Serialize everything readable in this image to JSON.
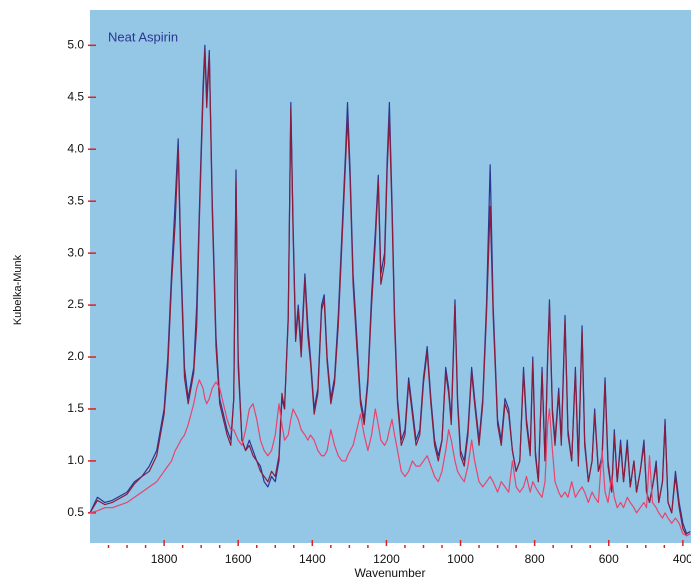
{
  "chart_data": {
    "type": "line",
    "title": "Neat Aspirin",
    "x_label": "Wavenumber",
    "y_label": "Kubelka-Munk",
    "x": [
      2000,
      1980,
      1960,
      1940,
      1900,
      1880,
      1860,
      1840,
      1820,
      1800,
      1790,
      1780,
      1770,
      1762,
      1755,
      1745,
      1735,
      1720,
      1712,
      1705,
      1695,
      1690,
      1685,
      1678,
      1670,
      1660,
      1650,
      1640,
      1630,
      1620,
      1612,
      1606,
      1600,
      1590,
      1580,
      1570,
      1560,
      1550,
      1540,
      1530,
      1520,
      1510,
      1500,
      1490,
      1482,
      1475,
      1465,
      1458,
      1452,
      1445,
      1438,
      1430,
      1420,
      1412,
      1405,
      1395,
      1385,
      1375,
      1368,
      1360,
      1350,
      1340,
      1330,
      1320,
      1310,
      1305,
      1298,
      1290,
      1280,
      1270,
      1260,
      1250,
      1240,
      1230,
      1222,
      1215,
      1205,
      1198,
      1192,
      1185,
      1178,
      1170,
      1160,
      1150,
      1140,
      1130,
      1120,
      1110,
      1100,
      1090,
      1080,
      1070,
      1060,
      1050,
      1040,
      1032,
      1025,
      1015,
      1008,
      1000,
      990,
      980,
      970,
      962,
      950,
      940,
      930,
      920,
      912,
      900,
      890,
      880,
      870,
      860,
      850,
      840,
      830,
      822,
      812,
      805,
      798,
      790,
      780,
      772,
      765,
      760,
      752,
      745,
      735,
      728,
      718,
      710,
      700,
      690,
      682,
      672,
      665,
      655,
      645,
      638,
      628,
      618,
      610,
      602,
      592,
      585,
      577,
      568,
      560,
      550,
      542,
      532,
      525,
      515,
      505,
      498,
      490,
      482,
      472,
      465,
      455,
      448,
      440,
      430,
      420,
      410,
      400,
      390,
      380
    ],
    "series": [
      {
        "color": "#2c3592",
        "values": [
          0.5,
          0.65,
          0.6,
          0.62,
          0.7,
          0.8,
          0.85,
          0.95,
          1.1,
          1.5,
          2.0,
          2.8,
          3.5,
          4.1,
          3.0,
          1.9,
          1.6,
          1.9,
          2.5,
          3.4,
          4.6,
          5.0,
          4.5,
          4.95,
          3.5,
          2.2,
          1.6,
          1.45,
          1.3,
          1.2,
          1.6,
          3.8,
          2.0,
          1.2,
          1.1,
          1.2,
          1.1,
          1.0,
          0.95,
          0.8,
          0.75,
          0.85,
          0.8,
          1.0,
          1.6,
          1.5,
          2.4,
          4.45,
          3.3,
          2.2,
          2.5,
          2.1,
          2.8,
          2.3,
          2.0,
          1.5,
          1.7,
          2.5,
          2.6,
          2.0,
          1.6,
          1.8,
          2.4,
          3.2,
          4.0,
          4.45,
          3.8,
          2.8,
          2.2,
          1.6,
          1.4,
          1.8,
          2.6,
          3.2,
          3.75,
          2.8,
          3.0,
          3.9,
          4.45,
          3.5,
          2.4,
          1.6,
          1.2,
          1.3,
          1.8,
          1.5,
          1.2,
          1.3,
          1.8,
          2.1,
          1.6,
          1.2,
          1.05,
          1.2,
          1.9,
          1.7,
          1.4,
          2.55,
          1.6,
          1.1,
          1.0,
          1.3,
          1.9,
          1.6,
          1.2,
          1.6,
          2.5,
          3.85,
          2.5,
          1.4,
          1.2,
          1.6,
          1.5,
          1.1,
          0.9,
          1.0,
          1.9,
          1.4,
          1.1,
          2.0,
          1.1,
          0.8,
          1.9,
          1.0,
          2.0,
          2.55,
          1.5,
          1.2,
          1.7,
          1.2,
          2.4,
          1.3,
          1.0,
          1.9,
          1.0,
          2.3,
          1.2,
          0.8,
          1.0,
          1.5,
          0.9,
          1.05,
          1.8,
          1.0,
          0.7,
          1.3,
          0.8,
          1.2,
          0.8,
          1.2,
          0.75,
          1.0,
          0.7,
          0.9,
          1.2,
          0.7,
          0.6,
          0.75,
          1.0,
          0.6,
          0.8,
          1.4,
          0.6,
          0.5,
          0.9,
          0.6,
          0.4,
          0.3,
          0.32
        ]
      },
      {
        "color": "#8c1c3c",
        "values": [
          0.5,
          0.62,
          0.58,
          0.6,
          0.68,
          0.78,
          0.85,
          0.9,
          1.05,
          1.45,
          1.9,
          2.7,
          3.3,
          4.0,
          2.9,
          1.8,
          1.55,
          1.85,
          2.3,
          3.3,
          4.5,
          4.95,
          4.4,
          4.9,
          3.4,
          2.1,
          1.55,
          1.4,
          1.25,
          1.15,
          1.6,
          3.7,
          1.9,
          1.2,
          1.1,
          1.15,
          1.05,
          1.0,
          0.9,
          0.85,
          0.8,
          0.9,
          0.85,
          1.05,
          1.65,
          1.5,
          2.35,
          4.4,
          3.2,
          2.15,
          2.45,
          2.0,
          2.75,
          2.2,
          1.95,
          1.45,
          1.65,
          2.45,
          2.55,
          1.95,
          1.55,
          1.75,
          2.3,
          3.1,
          3.9,
          4.3,
          3.7,
          2.7,
          2.1,
          1.55,
          1.35,
          1.75,
          2.5,
          3.1,
          3.7,
          2.7,
          2.9,
          3.8,
          4.3,
          3.4,
          2.3,
          1.55,
          1.15,
          1.25,
          1.75,
          1.45,
          1.15,
          1.25,
          1.75,
          2.05,
          1.55,
          1.15,
          1.0,
          1.2,
          1.85,
          1.65,
          1.35,
          2.5,
          1.55,
          1.05,
          0.95,
          1.25,
          1.85,
          1.55,
          1.15,
          1.55,
          2.4,
          3.45,
          2.4,
          1.35,
          1.15,
          1.55,
          1.45,
          1.1,
          0.9,
          1.0,
          1.85,
          1.35,
          1.05,
          1.95,
          1.05,
          0.8,
          1.85,
          1.0,
          1.95,
          2.5,
          1.45,
          1.15,
          1.65,
          1.15,
          2.35,
          1.25,
          1.0,
          1.85,
          0.95,
          2.25,
          1.15,
          0.8,
          1.0,
          1.45,
          0.9,
          1.0,
          1.75,
          0.95,
          0.7,
          1.25,
          0.8,
          1.15,
          0.8,
          1.15,
          0.75,
          1.0,
          0.7,
          0.9,
          1.15,
          0.7,
          0.6,
          0.75,
          0.95,
          0.6,
          0.8,
          1.35,
          0.6,
          0.5,
          0.85,
          0.55,
          0.35,
          0.28,
          0.3
        ]
      },
      {
        "color": "#e8436e",
        "values": [
          0.5,
          0.52,
          0.55,
          0.55,
          0.6,
          0.65,
          0.7,
          0.75,
          0.8,
          0.9,
          0.95,
          1.0,
          1.1,
          1.15,
          1.2,
          1.25,
          1.35,
          1.55,
          1.7,
          1.78,
          1.7,
          1.6,
          1.55,
          1.6,
          1.7,
          1.76,
          1.7,
          1.55,
          1.4,
          1.3,
          1.3,
          1.25,
          1.2,
          1.15,
          1.3,
          1.5,
          1.55,
          1.4,
          1.2,
          1.1,
          1.05,
          1.1,
          1.25,
          1.55,
          1.35,
          1.2,
          1.25,
          1.4,
          1.5,
          1.45,
          1.4,
          1.3,
          1.25,
          1.2,
          1.25,
          1.2,
          1.1,
          1.05,
          1.05,
          1.1,
          1.3,
          1.15,
          1.05,
          1.0,
          1.0,
          1.05,
          1.1,
          1.15,
          1.3,
          1.45,
          1.25,
          1.1,
          1.25,
          1.5,
          1.35,
          1.2,
          1.15,
          1.2,
          1.3,
          1.4,
          1.25,
          1.1,
          0.9,
          0.85,
          0.9,
          1.0,
          0.95,
          0.95,
          1.0,
          1.05,
          0.95,
          0.85,
          0.8,
          0.9,
          1.1,
          1.3,
          1.2,
          1.0,
          0.9,
          0.85,
          0.8,
          0.95,
          1.2,
          1.0,
          0.8,
          0.75,
          0.8,
          0.85,
          0.8,
          0.7,
          0.8,
          0.75,
          0.7,
          1.0,
          0.75,
          0.7,
          0.75,
          0.85,
          0.7,
          0.8,
          0.75,
          0.7,
          0.65,
          0.8,
          1.35,
          1.5,
          1.1,
          0.8,
          0.7,
          0.65,
          0.7,
          0.65,
          0.8,
          0.65,
          0.7,
          0.75,
          0.7,
          0.6,
          0.7,
          0.65,
          0.6,
          1.1,
          0.7,
          0.6,
          0.85,
          0.65,
          0.55,
          0.6,
          0.55,
          0.65,
          0.6,
          0.55,
          0.5,
          0.55,
          0.6,
          0.55,
          1.05,
          0.6,
          0.55,
          0.5,
          0.45,
          0.5,
          0.45,
          0.4,
          0.45,
          0.4,
          0.3,
          0.28,
          0.3
        ]
      }
    ],
    "xlim": [
      2000,
      378
    ],
    "ylim": [
      0.21,
      5.34
    ],
    "xticks": [
      1800,
      1600,
      1400,
      1200,
      1000,
      800,
      600,
      400
    ],
    "xminorticks": [
      1950,
      1900,
      1850,
      1750,
      1700,
      1650,
      1550,
      1500,
      1450,
      1350,
      1300,
      1250,
      1150,
      1100,
      1050,
      950,
      900,
      850,
      750,
      700,
      650,
      550,
      500,
      450
    ],
    "yticks": [
      0.5,
      {
        "value": 1,
        "label": "1.0"
      },
      1.5,
      {
        "value": 2,
        "label": "2.0"
      },
      2.5,
      {
        "value": 3,
        "label": "3.0"
      },
      3.5,
      {
        "value": 4,
        "label": "4.0"
      },
      4.5,
      {
        "value": 5,
        "label": "5.0"
      }
    ],
    "tick_color": "#e02020",
    "background": "#94c7e6"
  }
}
